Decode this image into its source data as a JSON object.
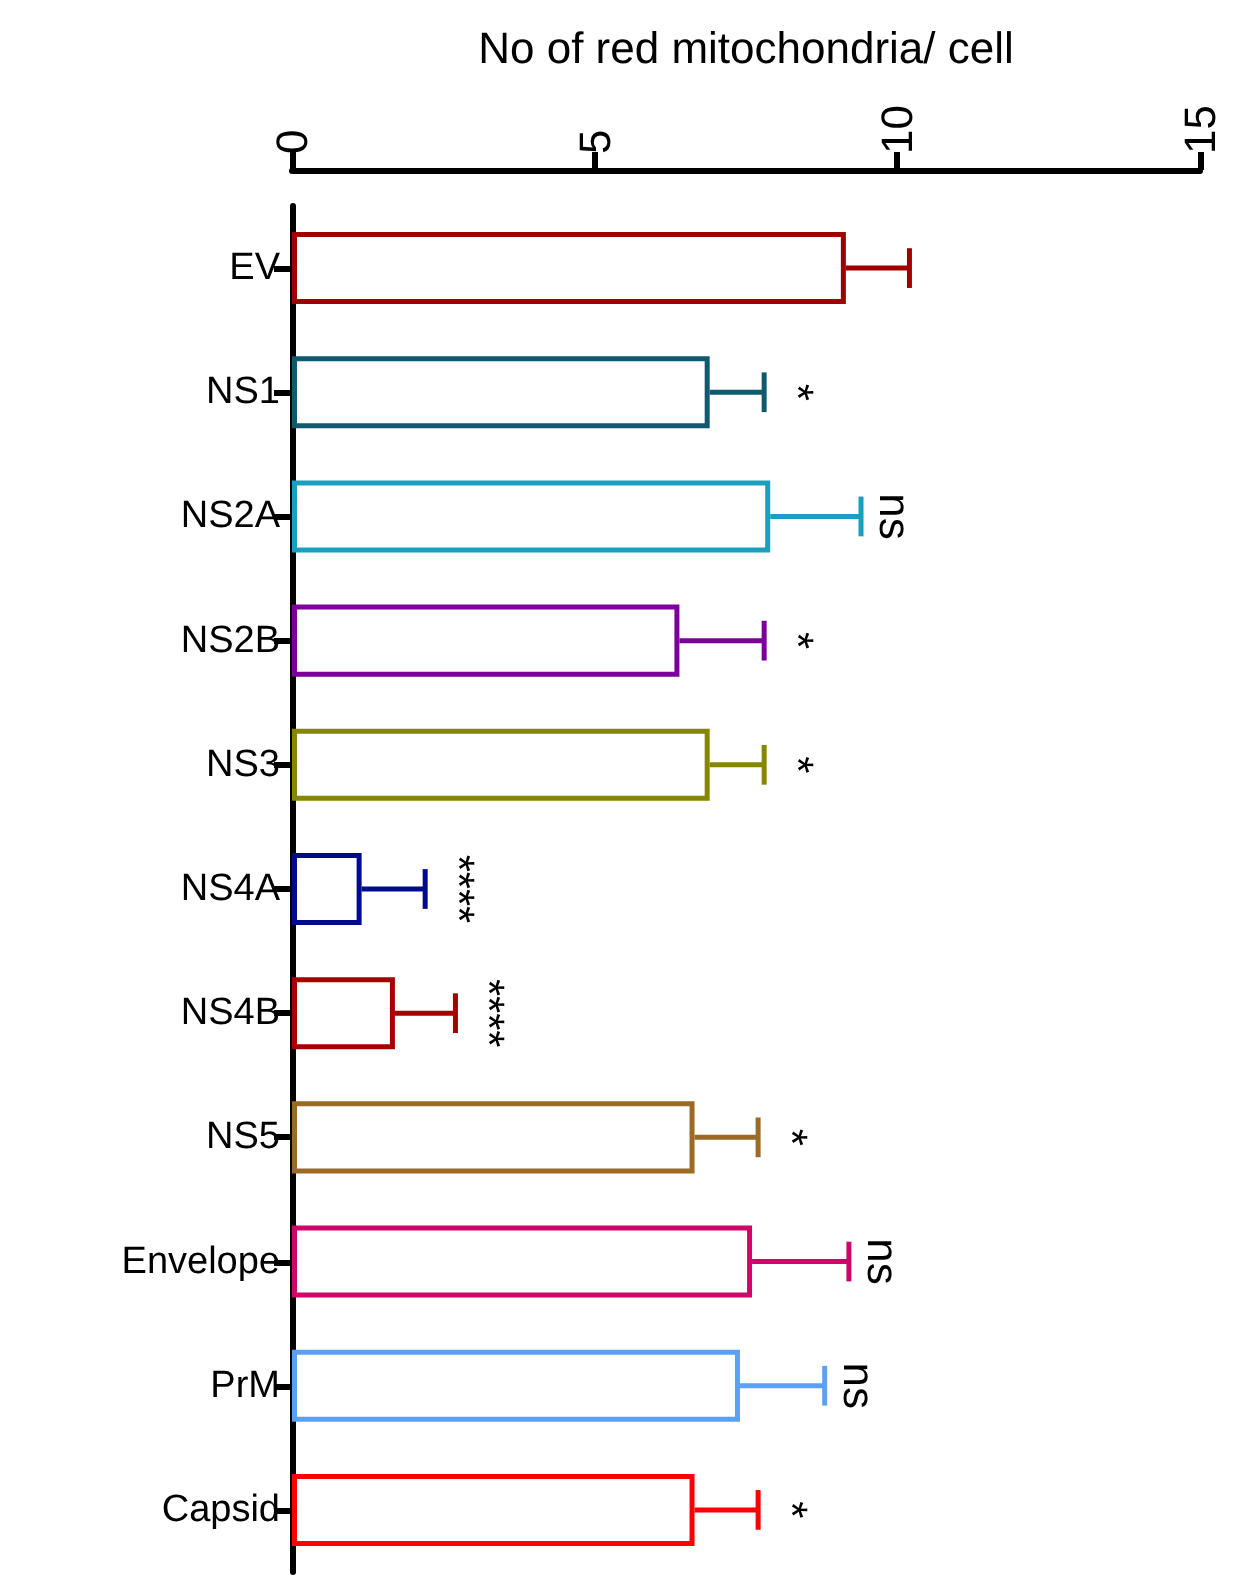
{
  "chart_data": {
    "type": "bar",
    "orientation": "horizontal",
    "xlabel": "No of red mitochondria/ cell",
    "categories": [
      "EV",
      "NS1",
      "NS2A",
      "NS2B",
      "NS3",
      "NS4A",
      "NS4B",
      "NS5",
      "Envelope",
      "PrM",
      "Capsid"
    ],
    "values": [
      9.15,
      6.9,
      7.9,
      6.4,
      6.9,
      1.15,
      1.7,
      6.65,
      7.6,
      7.4,
      6.65
    ],
    "errors": [
      [
        9.15,
        10.2
      ],
      [
        6.9,
        7.8
      ],
      [
        7.9,
        9.4
      ],
      [
        6.4,
        7.8
      ],
      [
        6.9,
        7.8
      ],
      [
        1.15,
        2.2
      ],
      [
        1.7,
        2.7
      ],
      [
        6.65,
        7.7
      ],
      [
        7.6,
        9.2
      ],
      [
        7.4,
        8.8
      ],
      [
        6.65,
        7.7
      ]
    ],
    "colors": [
      "#a00000",
      "#0f5a6e",
      "#1a9fbd",
      "#7b0099",
      "#868600",
      "#000a8c",
      "#a80000",
      "#9b6a25",
      "#d0056a",
      "#5aa0f5",
      "#ff0000"
    ],
    "value_labels": [
      null,
      "*",
      "ns",
      "*",
      "*",
      "****",
      "****",
      "*",
      "ns",
      "ns",
      "*"
    ],
    "xlim": [
      0,
      15
    ],
    "xticks": [
      0,
      5,
      10,
      15
    ],
    "grid": false
  }
}
